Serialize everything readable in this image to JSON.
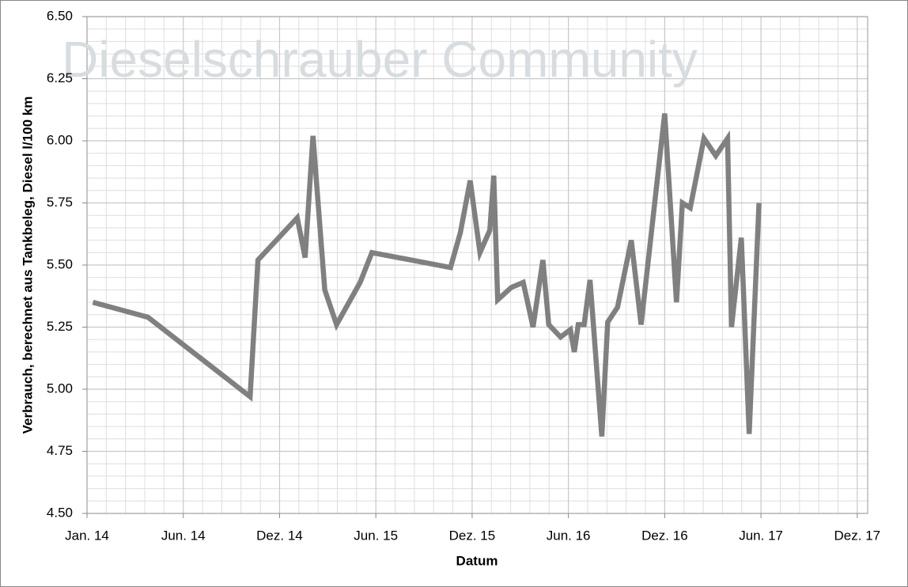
{
  "chart_data": {
    "type": "line",
    "watermark": "Dieselschrauber Community",
    "x_label": "Datum",
    "y_label": "Verbrauch, berechnet aus Tankbeleg, Diesel l/100 km",
    "xlim": [
      2014.0,
      2017.973
    ],
    "xticks": [
      {
        "value": 2014.0,
        "label": "Jan. 14"
      },
      {
        "value": 2014.49,
        "label": "Jun. 14"
      },
      {
        "value": 2014.98,
        "label": "Dez. 14"
      },
      {
        "value": 2015.47,
        "label": "Jun. 15"
      },
      {
        "value": 2015.96,
        "label": "Dez. 15"
      },
      {
        "value": 2016.45,
        "label": "Jun. 16"
      },
      {
        "value": 2016.94,
        "label": "Dez. 16"
      },
      {
        "value": 2017.43,
        "label": "Jun. 17"
      },
      {
        "value": 2017.92,
        "label": "Dez. 17"
      }
    ],
    "ylim": [
      4.5,
      6.5
    ],
    "yticks": [
      {
        "value": 4.5,
        "label": "4.50"
      },
      {
        "value": 4.75,
        "label": "4.75"
      },
      {
        "value": 5.0,
        "label": "5.00"
      },
      {
        "value": 5.25,
        "label": "5.25"
      },
      {
        "value": 5.5,
        "label": "5.50"
      },
      {
        "value": 5.75,
        "label": "5.75"
      },
      {
        "value": 6.0,
        "label": "6.00"
      },
      {
        "value": 6.25,
        "label": "6.25"
      },
      {
        "value": 6.5,
        "label": "6.50"
      }
    ],
    "grid": true,
    "x": [
      2014.03,
      2014.31,
      2014.83,
      2014.87,
      2015.07,
      2015.11,
      2015.15,
      2015.21,
      2015.27,
      2015.39,
      2015.45,
      2015.85,
      2015.9,
      2015.95,
      2016.0,
      2016.05,
      2016.07,
      2016.09,
      2016.16,
      2016.22,
      2016.27,
      2016.32,
      2016.35,
      2016.41,
      2016.46,
      2016.48,
      2016.5,
      2016.53,
      2016.56,
      2016.62,
      2016.65,
      2016.7,
      2016.77,
      2016.82,
      2016.94,
      2017.0,
      2017.03,
      2017.07,
      2017.14,
      2017.2,
      2017.26,
      2017.28,
      2017.33,
      2017.37,
      2017.42
    ],
    "series": [
      {
        "color": "#808080",
        "values": [
          5.35,
          5.29,
          4.97,
          5.52,
          5.69,
          5.53,
          6.02,
          5.4,
          5.26,
          5.43,
          5.55,
          5.49,
          5.63,
          5.84,
          5.55,
          5.64,
          5.86,
          5.36,
          5.41,
          5.43,
          5.25,
          5.52,
          5.26,
          5.21,
          5.24,
          5.15,
          5.26,
          5.26,
          5.44,
          4.81,
          5.27,
          5.33,
          5.6,
          5.26,
          6.11,
          5.35,
          5.75,
          5.73,
          6.01,
          5.94,
          6.01,
          5.25,
          5.61,
          4.82,
          5.75
        ]
      }
    ]
  }
}
